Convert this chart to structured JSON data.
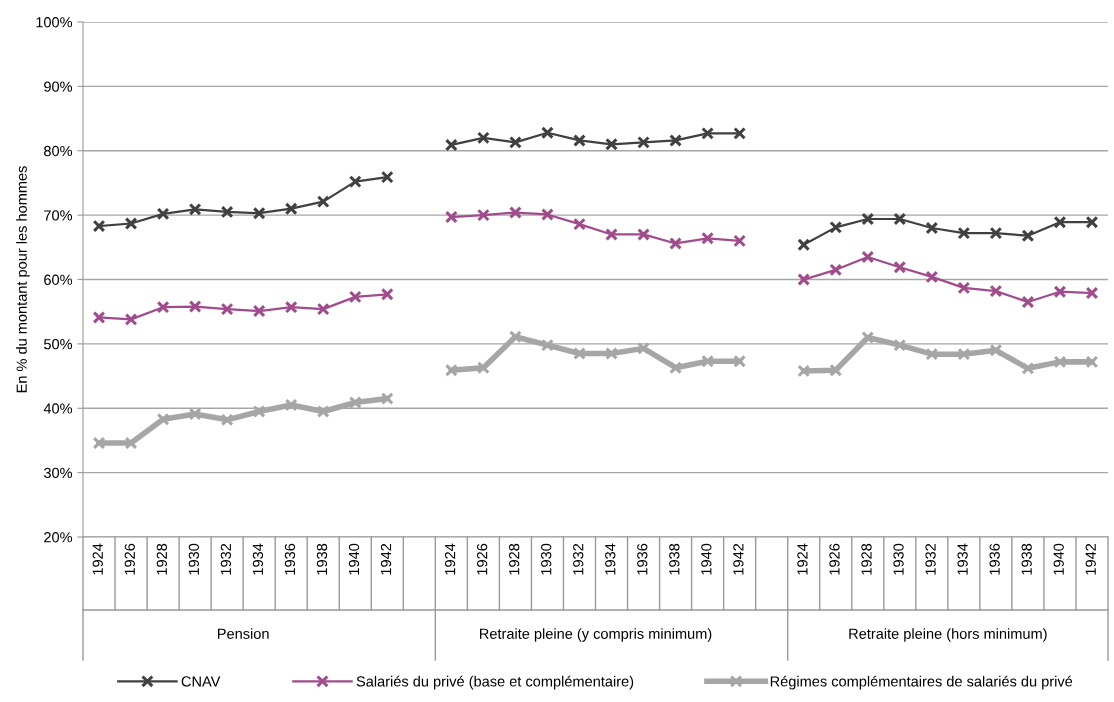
{
  "chart_data": {
    "type": "line",
    "ylabel": "En % du montant pour les hommes",
    "categories": [
      "1924",
      "1926",
      "1928",
      "1930",
      "1932",
      "1934",
      "1936",
      "1938",
      "1940",
      "1942",
      null,
      "1924",
      "1926",
      "1928",
      "1930",
      "1932",
      "1934",
      "1936",
      "1938",
      "1940",
      "1942",
      null,
      "1924",
      "1926",
      "1928",
      "1930",
      "1932",
      "1934",
      "1936",
      "1938",
      "1940",
      "1942"
    ],
    "series": [
      {
        "name": "CNAV",
        "color": "#404040",
        "values": [
          68.3,
          68.7,
          70.2,
          70.9,
          70.5,
          70.3,
          71.0,
          72.1,
          75.2,
          75.9,
          null,
          80.9,
          82.0,
          81.3,
          82.8,
          81.6,
          81.0,
          81.3,
          81.6,
          82.7,
          82.7,
          null,
          65.4,
          68.1,
          69.4,
          69.4,
          68.0,
          67.2,
          67.2,
          66.8,
          68.9,
          68.9
        ]
      },
      {
        "name": "Salariés du privé (base et complémentaire)",
        "color": "#a04c8c",
        "values": [
          54.1,
          53.8,
          55.7,
          55.8,
          55.4,
          55.1,
          55.7,
          55.4,
          57.3,
          57.7,
          null,
          69.7,
          70.0,
          70.4,
          70.1,
          68.6,
          67.0,
          67.0,
          65.6,
          66.4,
          66.0,
          null,
          60.0,
          61.5,
          63.5,
          61.9,
          60.4,
          58.7,
          58.2,
          56.5,
          58.1,
          57.9
        ]
      },
      {
        "name": "Régimes complémentaires de salariés du privé",
        "color": "#a6a6a6",
        "values": [
          34.6,
          34.6,
          38.3,
          39.1,
          38.2,
          39.5,
          40.5,
          39.5,
          40.9,
          41.5,
          null,
          45.9,
          46.3,
          51.1,
          49.8,
          48.5,
          48.5,
          49.3,
          46.3,
          47.3,
          47.3,
          null,
          45.8,
          45.9,
          51.0,
          49.8,
          48.4,
          48.4,
          49.0,
          46.2,
          47.2,
          47.2
        ]
      }
    ],
    "ylim": [
      20,
      100
    ],
    "yticks": [
      {
        "value": 20,
        "label": "20%"
      },
      {
        "value": 30,
        "label": "30%"
      },
      {
        "value": 40,
        "label": "40%"
      },
      {
        "value": 50,
        "label": "50%"
      },
      {
        "value": 60,
        "label": "60%"
      },
      {
        "value": 70,
        "label": "70%"
      },
      {
        "value": 80,
        "label": "80%"
      },
      {
        "value": 90,
        "label": "90%"
      },
      {
        "value": 100,
        "label": "100%"
      }
    ],
    "annotations": [
      "Pension",
      "Retraite pleine (y compris minimum)",
      "Retraite pleine (hors minimum)"
    ],
    "grid": "y",
    "legend": "bottom",
    "marker": "cross",
    "line_style": "solid"
  }
}
